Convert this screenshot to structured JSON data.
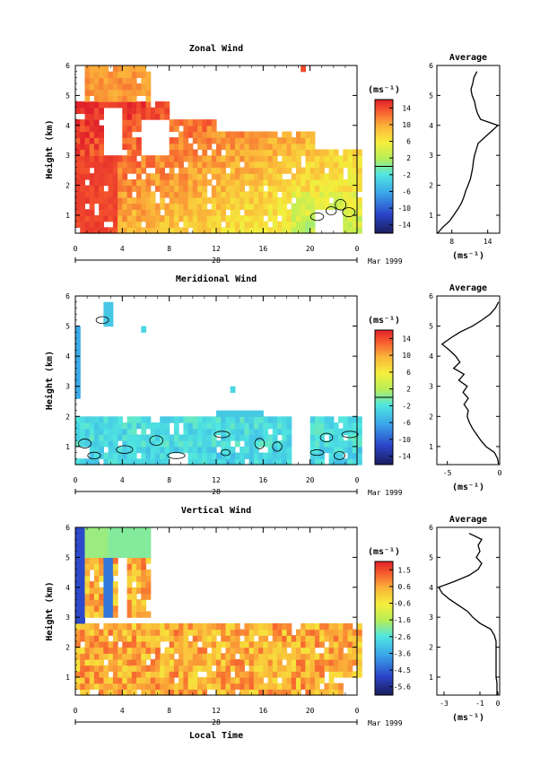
{
  "chart_data": [
    {
      "type": "heatmap",
      "title": "Zonal Wind",
      "xlabel": "",
      "ylabel": "Height (km)",
      "x_ticks": [
        "0",
        "4",
        "8",
        "12",
        "16",
        "20",
        "0"
      ],
      "xlim": [
        0,
        24
      ],
      "y_ticks": [
        "1",
        "2",
        "3",
        "4",
        "5",
        "6"
      ],
      "ylim": [
        0.4,
        6
      ],
      "date_label": "28",
      "month_label": "Mar 1999",
      "colorbar": {
        "label": "(ms⁻¹)",
        "ticks": [
          "14",
          "10",
          "6",
          "2",
          "-2",
          "-6",
          "-10",
          "-14"
        ],
        "range": [
          -16,
          16
        ]
      },
      "field": {
        "gaps": [
          [
            6.2,
            24,
            4.7,
            6
          ],
          [
            8,
            24,
            4.2,
            4.7
          ],
          [
            12,
            24,
            3.7,
            4.2
          ],
          [
            20,
            24,
            3.1,
            3.7
          ],
          [
            20,
            22.5,
            0.4,
            1.2
          ],
          [
            0,
            0.8,
            4.8,
            6
          ],
          [
            2.2,
            3.6,
            3.0,
            4.6
          ],
          [
            5.6,
            8,
            3.0,
            4.2
          ]
        ],
        "spots": [
          [
            19.1,
            5.75,
            0.2,
            0.3,
            14
          ]
        ],
        "contours": [
          [
            20.6,
            0.95
          ],
          [
            21.8,
            1.15
          ],
          [
            22.6,
            1.35
          ],
          [
            23.3,
            1.1
          ]
        ]
      },
      "profile": {
        "title": "Average",
        "xlabel": "(ms⁻¹)",
        "x_ticks": [
          "8",
          "14"
        ],
        "xlim": [
          5.5,
          16
        ],
        "y_ticks": [
          "1",
          "2",
          "3",
          "4",
          "5",
          "6"
        ],
        "ylim": [
          0.4,
          6
        ],
        "y": [
          0.4,
          0.6,
          0.8,
          1,
          1.2,
          1.4,
          1.6,
          1.8,
          2,
          2.2,
          2.4,
          2.6,
          2.8,
          3,
          3.2,
          3.4,
          3.6,
          3.8,
          4,
          4.2,
          4.4,
          4.6,
          4.8,
          5,
          5.2,
          5.4,
          5.6,
          5.8
        ],
        "x": [
          5.6,
          6.5,
          7.6,
          8.3,
          9,
          9.6,
          10,
          10.3,
          10.7,
          11.1,
          11.3,
          11.5,
          11.6,
          11.8,
          12.1,
          12.4,
          13.5,
          14.6,
          15.7,
          12.8,
          12.3,
          12.0,
          11.8,
          11.4,
          11.2,
          11.5,
          11.7,
          12.2
        ]
      }
    },
    {
      "type": "heatmap",
      "title": "Meridional Wind",
      "xlabel": "",
      "ylabel": "Height (km)",
      "x_ticks": [
        "0",
        "4",
        "8",
        "12",
        "16",
        "20",
        "0"
      ],
      "xlim": [
        0,
        24
      ],
      "y_ticks": [
        "1",
        "2",
        "3",
        "4",
        "5",
        "6"
      ],
      "ylim": [
        0.4,
        6
      ],
      "date_label": "28",
      "month_label": "Mar 1999",
      "colorbar": {
        "label": "(ms⁻¹)",
        "ticks": [
          "14",
          "10",
          "6",
          "2",
          "-2",
          "-6",
          "-10",
          "-14"
        ],
        "range": [
          -16,
          16
        ]
      },
      "field": {
        "gaps": [
          [
            0,
            24,
            1.8,
            6
          ],
          [
            18.4,
            19.8,
            0.4,
            1.9
          ],
          [
            0,
            1.2,
            0.5,
            1.0
          ],
          [
            7.8,
            9.4,
            0.4,
            0.8
          ]
        ],
        "spots": [
          [
            0,
            2.5,
            0.4,
            2.4,
            -6
          ],
          [
            2.1,
            5.0,
            0.9,
            0.8,
            -4
          ],
          [
            2.2,
            5.55,
            0.4,
            0.2,
            -5
          ],
          [
            5.6,
            4.8,
            0.2,
            0.2,
            -3
          ],
          [
            12.0,
            1.9,
            4.0,
            0.3,
            -4
          ],
          [
            9.7,
            3.0,
            0.2,
            0.2,
            -3
          ],
          [
            13.1,
            2.75,
            0.2,
            0.2,
            -3
          ],
          [
            15.7,
            2.55,
            0.2,
            0.2,
            -3
          ],
          [
            20.4,
            1.9,
            0.3,
            0.3,
            -3
          ]
        ],
        "contours": [
          [
            0.8,
            1.1
          ],
          [
            1.6,
            0.7
          ],
          [
            4.2,
            0.9
          ],
          [
            6.9,
            1.2
          ],
          [
            8.6,
            0.7
          ],
          [
            12.5,
            1.4
          ],
          [
            12.8,
            0.8
          ],
          [
            15.7,
            1.1
          ],
          [
            17.2,
            1.0
          ],
          [
            20.6,
            0.8
          ],
          [
            21.4,
            1.3
          ],
          [
            22.5,
            0.7
          ],
          [
            23.4,
            1.4
          ],
          [
            2.3,
            5.2
          ]
        ]
      },
      "profile": {
        "title": "Average",
        "xlabel": "(ms⁻¹)",
        "x_ticks": [
          "-5",
          "0"
        ],
        "xlim": [
          -6,
          0
        ],
        "y_ticks": [
          "1",
          "2",
          "3",
          "4",
          "5",
          "6"
        ],
        "ylim": [
          0.4,
          6
        ],
        "y": [
          0.4,
          0.6,
          0.8,
          1,
          1.2,
          1.4,
          1.6,
          1.8,
          2,
          2.2,
          2.4,
          2.6,
          2.8,
          3,
          3.2,
          3.4,
          3.6,
          3.8,
          4,
          4.2,
          4.4,
          4.6,
          4.8,
          5,
          5.2,
          5.4,
          5.6,
          5.8
        ],
        "x": [
          -0.1,
          -0.2,
          -0.5,
          -1.3,
          -1.8,
          -2.2,
          -2.6,
          -2.9,
          -3.1,
          -3.0,
          -3.4,
          -3.0,
          -3.5,
          -3.1,
          -3.9,
          -3.4,
          -4.4,
          -3.8,
          -4.2,
          -4.8,
          -5.5,
          -4.7,
          -3.8,
          -2.6,
          -1.7,
          -0.9,
          -0.4,
          -0.1
        ]
      }
    },
    {
      "type": "heatmap",
      "title": "Vertical Wind",
      "xlabel": "Local Time",
      "ylabel": "Height (km)",
      "x_ticks": [
        "0",
        "4",
        "8",
        "12",
        "16",
        "20",
        "0"
      ],
      "xlim": [
        0,
        24
      ],
      "y_ticks": [
        "1",
        "2",
        "3",
        "4",
        "5",
        "6"
      ],
      "ylim": [
        0.4,
        6
      ],
      "date_label": "28",
      "month_label": "Mar 1999",
      "colorbar": {
        "label": "(ms⁻¹)",
        "ticks": [
          "1.5",
          "0.6",
          "-0.6",
          "-1.6",
          "-2.6",
          "-3.6",
          "-4.5",
          "-5.6"
        ],
        "range": [
          -6,
          2
        ]
      },
      "field": {
        "gaps": [
          [
            6.2,
            24,
            2.8,
            6
          ],
          [
            0,
            6.2,
            2.8,
            3.0
          ],
          [
            4.2,
            6.2,
            5.0,
            6
          ],
          [
            3.2,
            4.2,
            3.0,
            5.0
          ],
          [
            22.4,
            24,
            0.4,
            1.0
          ]
        ],
        "spots": [
          [
            0,
            2.8,
            0.8,
            3.2,
            -4.8
          ],
          [
            2.2,
            3.0,
            0.7,
            1.9,
            -4.2
          ],
          [
            0.8,
            5.0,
            2.0,
            1.0,
            -1.8
          ],
          [
            2.8,
            5.0,
            3.4,
            1.0,
            -2.0
          ],
          [
            18.9,
            5.9,
            0.1,
            0.1,
            -1
          ],
          [
            13.3,
            4.2,
            0.1,
            0.1,
            -1
          ],
          [
            13.7,
            3.1,
            0.2,
            0.2,
            -1
          ]
        ],
        "contours": []
      },
      "profile": {
        "title": "Average",
        "xlabel": "(ms⁻¹)",
        "x_ticks": [
          "-3",
          "-1",
          "0"
        ],
        "xlim": [
          -3.4,
          0.1
        ],
        "y_ticks": [
          "1",
          "2",
          "3",
          "4",
          "5",
          "6"
        ],
        "ylim": [
          0.4,
          6
        ],
        "y": [
          0.4,
          0.6,
          0.8,
          1,
          1.2,
          1.4,
          1.6,
          1.8,
          2,
          2.2,
          2.4,
          2.6,
          2.8,
          3,
          3.2,
          3.4,
          3.6,
          3.8,
          4,
          4.2,
          4.4,
          4.6,
          4.8,
          5,
          5.2,
          5.4,
          5.6,
          5.8
        ],
        "x": [
          -0.05,
          -0.05,
          -0.05,
          -0.1,
          -0.1,
          -0.1,
          -0.1,
          -0.1,
          -0.1,
          -0.1,
          -0.2,
          -0.4,
          -1.0,
          -1.4,
          -1.7,
          -2.2,
          -2.7,
          -3.1,
          -3.3,
          -2.4,
          -1.6,
          -1.1,
          -0.9,
          -1.2,
          -1.0,
          -1.1,
          -0.9,
          -1.6
        ]
      }
    }
  ]
}
